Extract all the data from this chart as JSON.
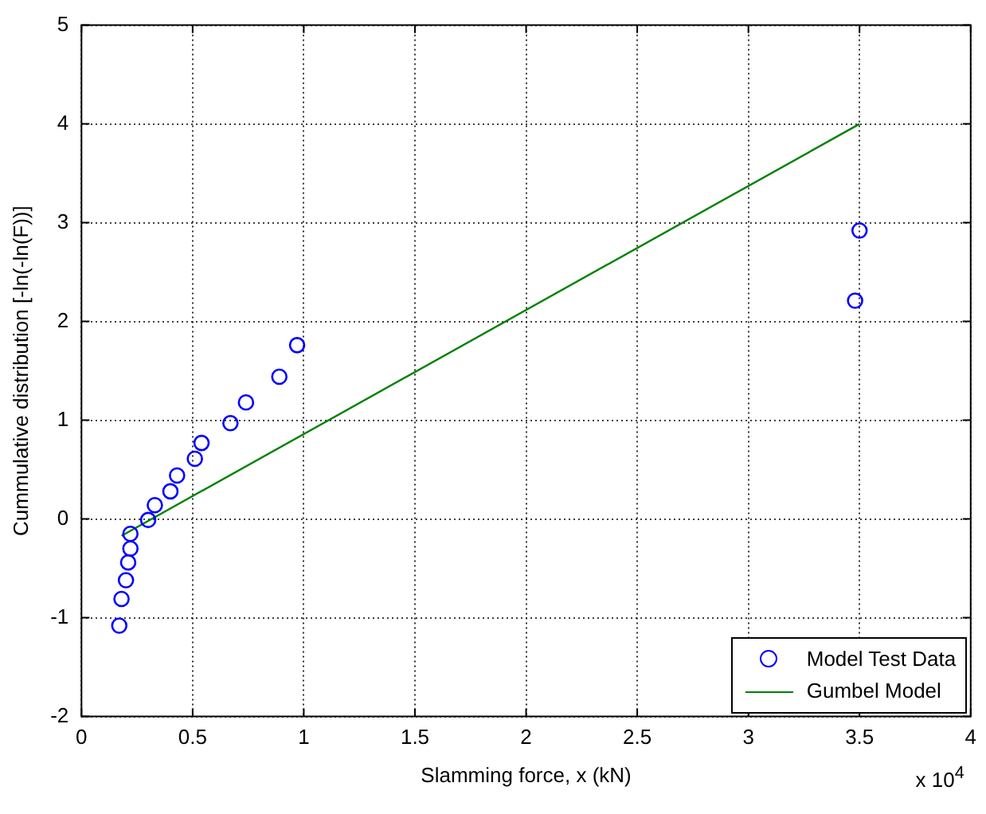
{
  "chart_data": {
    "type": "scatter",
    "xlabel": "Slamming force, x (kN)",
    "ylabel": "Cummulative distribution [-ln(-ln(F))]",
    "xlim": [
      0,
      4
    ],
    "xticks": [
      0,
      0.5,
      1,
      1.5,
      2,
      2.5,
      3,
      3.5,
      4
    ],
    "ylim": [
      -2,
      5
    ],
    "yticks": [
      -2,
      -1,
      0,
      1,
      2,
      3,
      4,
      5
    ],
    "grid": true,
    "legend": "bottom right",
    "annotations": [
      "x 10$^{4}$"
    ],
    "series": [
      {
        "name": "Model Test Data",
        "marker": "circle",
        "color": "#0000ff",
        "x": [
          0.17,
          0.18,
          0.2,
          0.21,
          0.22,
          0.22,
          0.3,
          0.33,
          0.4,
          0.43,
          0.51,
          0.54,
          0.67,
          0.74,
          0.89,
          0.97,
          3.48,
          3.5
        ],
        "values": [
          -1.08,
          -0.81,
          -0.62,
          -0.44,
          -0.3,
          -0.15,
          -0.01,
          0.14,
          0.28,
          0.44,
          0.61,
          0.77,
          0.97,
          1.18,
          1.44,
          1.76,
          2.21,
          2.92
        ]
      },
      {
        "name": "Gumbel Model",
        "type": "line",
        "marker": "none",
        "color": "#008000",
        "x": [
          0.18,
          3.5
        ],
        "values": [
          -0.17,
          4.0
        ]
      }
    ]
  }
}
